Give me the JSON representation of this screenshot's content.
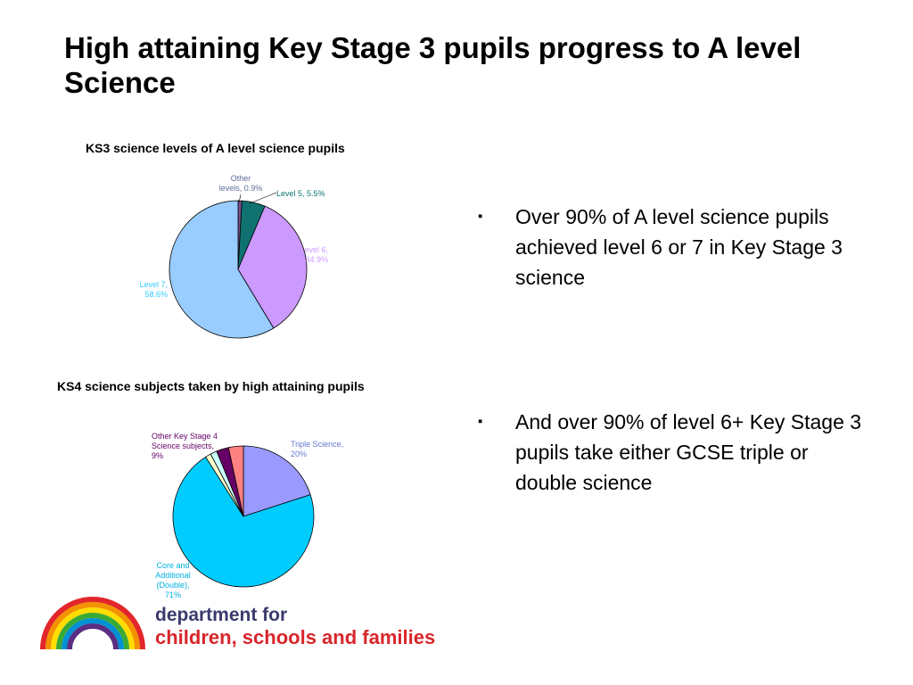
{
  "slide": {
    "title": "High attaining Key Stage 3 pupils progress to A level Science",
    "bullets": [
      "Over 90% of A level science pupils achieved level 6 or 7 in Key Stage 3 science",
      "And over 90% of level 6+ Key Stage 3 pupils take either GCSE triple or double science"
    ],
    "bullet_marker": "▪"
  },
  "chart_data": [
    {
      "type": "pie",
      "title": "KS3 science levels of A level science pupils",
      "slices": [
        {
          "label": [
            "Other",
            "levels, 0.9%"
          ],
          "value": 0.9,
          "color": "#7a4f8f",
          "label_color": "#5b6b9a"
        },
        {
          "label": [
            "Level 5, 5.5%"
          ],
          "value": 5.5,
          "color": "#0f7270",
          "label_color": "#0f7270"
        },
        {
          "label": [
            "Level 6,",
            "34.9%"
          ],
          "value": 34.9,
          "color": "#cc99ff",
          "label_color": "#cc99ff"
        },
        {
          "label": [
            "Level 7,",
            "58.6%"
          ],
          "value": 58.6,
          "color": "#99ccff",
          "label_color": "#33ccff"
        }
      ]
    },
    {
      "type": "pie",
      "title": "KS4 science subjects taken by high attaining pupils",
      "slices": [
        {
          "label": [
            "Triple Science,",
            "20%"
          ],
          "value": 20,
          "color": "#9999ff",
          "label_color": "#6677cc"
        },
        {
          "label": [
            "Core and",
            "Additional",
            "(Double),",
            "71%"
          ],
          "value": 71,
          "color": "#00ccff",
          "label_color": "#00b0e0"
        },
        {
          "label": [],
          "value": 1.3,
          "color": "#ffffcc",
          "label_color": "#000000"
        },
        {
          "label": [],
          "value": 1.5,
          "color": "#ccffff",
          "label_color": "#000000"
        },
        {
          "label": [
            "Other Key Stage 4",
            "Science subjects,",
            "9%"
          ],
          "value": 2.8,
          "color": "#660066",
          "label_color": "#660066"
        },
        {
          "label": [],
          "value": 3.4,
          "color": "#ff8080",
          "label_color": "#000000"
        }
      ]
    }
  ],
  "logo": {
    "line1": "department for",
    "line2": "children, schools and families",
    "rainbow_colors": [
      "#e3262b",
      "#f39200",
      "#ffdd00",
      "#3aaa35",
      "#0090d4",
      "#5a2d82"
    ]
  }
}
